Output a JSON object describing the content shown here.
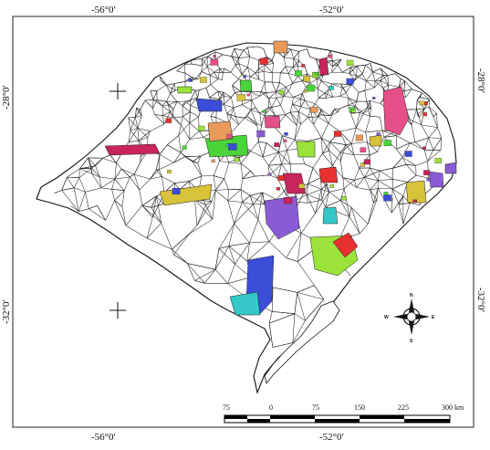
{
  "map": {
    "graticule": {
      "top": [
        "-56°0′",
        "-52°0′"
      ],
      "bottom": [
        "-56°0′",
        "-52°0′"
      ],
      "left": [
        "-28°0′",
        "-32°0′"
      ],
      "right": [
        "-28°0′",
        "-32°0′"
      ]
    },
    "scale_bar": {
      "labels": [
        "75",
        "0",
        "75",
        "150",
        "225",
        "300 km"
      ]
    },
    "compass": {
      "n": "N",
      "s": "S",
      "e": "E",
      "w": "W"
    },
    "highlight_colors": [
      "#c8255a",
      "#d8c23a",
      "#8b5bd6",
      "#9be23a",
      "#e83030",
      "#3a4ed8",
      "#35c8c8",
      "#e6508a",
      "#4ad43a",
      "#e89a5a"
    ]
  }
}
